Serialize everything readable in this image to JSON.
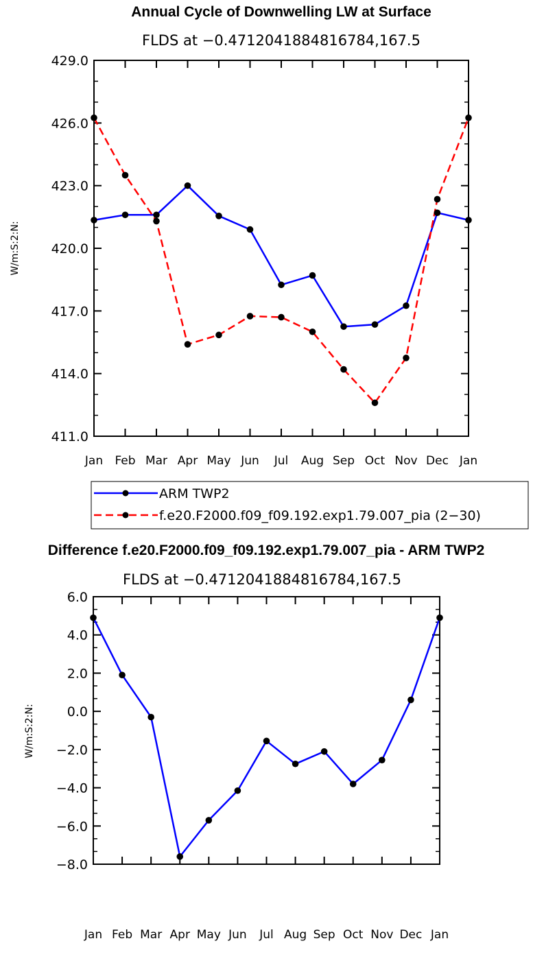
{
  "chart_data": [
    {
      "type": "line",
      "title": "Annual Cycle of Downwelling LW at Surface",
      "subtitle": "FLDS at −0.4712041884816784,167.5",
      "ylabel": "W/m:S:2:N:",
      "xlabel": "",
      "categories": [
        "Jan",
        "Feb",
        "Mar",
        "Apr",
        "May",
        "Jun",
        "Jul",
        "Aug",
        "Sep",
        "Oct",
        "Nov",
        "Dec",
        "Jan"
      ],
      "ylim": [
        411.0,
        429.0
      ],
      "yticks": [
        "411.0",
        "414.0",
        "417.0",
        "420.0",
        "423.0",
        "426.0",
        "429.0"
      ],
      "series": [
        {
          "name": "ARM TWP2",
          "color": "#0000ff",
          "dash": "solid",
          "values": [
            421.35,
            421.6,
            421.6,
            423.0,
            421.55,
            420.9,
            418.25,
            418.7,
            416.25,
            416.35,
            417.25,
            421.7,
            421.35
          ]
        },
        {
          "name": "f.e20.F2000.f09_f09.192.exp1.79.007_pia (2−30)",
          "color": "#ff0000",
          "dash": "dashed",
          "values": [
            426.25,
            423.5,
            421.3,
            415.4,
            415.85,
            416.75,
            416.7,
            416.0,
            414.2,
            412.6,
            414.75,
            422.35,
            426.25
          ]
        }
      ],
      "legend": "below"
    },
    {
      "type": "line",
      "title": "Difference f.e20.F2000.f09_f09.192.exp1.79.007_pia - ARM TWP2",
      "subtitle": "FLDS at −0.4712041884816784,167.5",
      "ylabel": "W/m:S:2:N:",
      "xlabel": "",
      "categories": [
        "Jan",
        "Feb",
        "Mar",
        "Apr",
        "May",
        "Jun",
        "Jul",
        "Aug",
        "Sep",
        "Oct",
        "Nov",
        "Dec",
        "Jan"
      ],
      "ylim": [
        -8.0,
        6.0
      ],
      "yticks": [
        "−8.0",
        "−6.0",
        "−4.0",
        "−2.0",
        "0.0",
        "2.0",
        "4.0",
        "6.0"
      ],
      "series": [
        {
          "name": "Difference",
          "color": "#0000ff",
          "dash": "solid",
          "values": [
            4.9,
            1.9,
            -0.3,
            -7.6,
            -5.7,
            -4.15,
            -1.55,
            -2.75,
            -2.1,
            -3.8,
            -2.55,
            0.6,
            4.9
          ]
        }
      ]
    }
  ]
}
